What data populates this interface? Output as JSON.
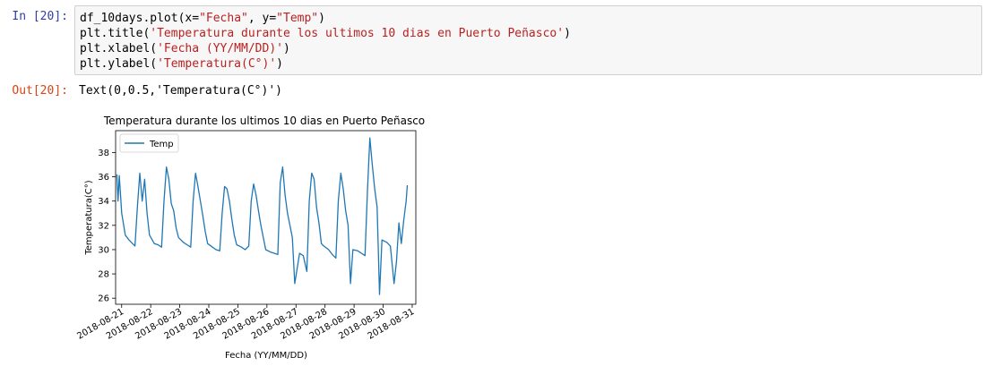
{
  "cell": {
    "in_prompt": "In [20]:",
    "out_prompt": "Out[20]:",
    "code_lines": [
      [
        "df_10days.plot(x=",
        "\"Fecha\"",
        ", y=",
        "\"Temp\"",
        ")"
      ],
      [
        "plt.title(",
        "'Temperatura durante los ultimos 10 dias en Puerto Peñasco'",
        ")"
      ],
      [
        "plt.xlabel(",
        "'Fecha (YY/MM/DD)'",
        ")"
      ],
      [
        "plt.ylabel(",
        "'Temperatura(C°)'",
        ")"
      ]
    ],
    "output_text": "Text(0,0.5,'Temperatura(C°)')"
  },
  "colors": {
    "line": "#1f77b4",
    "in_prompt": "#303f9f",
    "out_prompt": "#d84315",
    "string": "#ba2121"
  },
  "chart_data": {
    "type": "line",
    "title": "Temperatura durante los ultimos 10 dias en Puerto Peñasco",
    "xlabel": "Fecha (YY/MM/DD)",
    "ylabel": "Temperatura(C°)",
    "legend": {
      "entries": [
        "Temp"
      ],
      "placement": "upper-left"
    },
    "x_ticks": [
      "2018-08-21",
      "2018-08-22",
      "2018-08-23",
      "2018-08-24",
      "2018-08-25",
      "2018-08-26",
      "2018-08-27",
      "2018-08-28",
      "2018-08-29",
      "2018-08-30",
      "2018-08-31"
    ],
    "y_ticks": [
      26,
      28,
      30,
      32,
      34,
      36,
      38
    ],
    "ylim": [
      25.5,
      39.8
    ],
    "xlim": [
      "2018-08-20 19:00",
      "2018-08-31 03:00"
    ],
    "grid": false,
    "series": [
      {
        "name": "Temp",
        "x": [
          "2018-08-20 20:00",
          "2018-08-20 21:00",
          "2018-08-20 22:00",
          "2018-08-21 00:00",
          "2018-08-21 03:00",
          "2018-08-21 06:00",
          "2018-08-21 09:00",
          "2018-08-21 11:00",
          "2018-08-21 13:00",
          "2018-08-21 15:00",
          "2018-08-21 17:00",
          "2018-08-21 19:00",
          "2018-08-21 21:00",
          "2018-08-21 23:00",
          "2018-08-22 03:00",
          "2018-08-22 06:00",
          "2018-08-22 09:00",
          "2018-08-22 11:00",
          "2018-08-22 13:00",
          "2018-08-22 15:00",
          "2018-08-22 17:00",
          "2018-08-22 19:00",
          "2018-08-22 21:00",
          "2018-08-22 23:00",
          "2018-08-23 03:00",
          "2018-08-23 06:00",
          "2018-08-23 09:00",
          "2018-08-23 11:00",
          "2018-08-23 13:00",
          "2018-08-23 15:00",
          "2018-08-23 17:00",
          "2018-08-23 19:00",
          "2018-08-23 21:00",
          "2018-08-23 23:00",
          "2018-08-24 03:00",
          "2018-08-24 06:00",
          "2018-08-24 09:00",
          "2018-08-24 11:00",
          "2018-08-24 13:00",
          "2018-08-24 15:00",
          "2018-08-24 17:00",
          "2018-08-24 19:00",
          "2018-08-24 21:00",
          "2018-08-24 23:00",
          "2018-08-25 03:00",
          "2018-08-25 06:00",
          "2018-08-25 09:00",
          "2018-08-25 11:00",
          "2018-08-25 13:00",
          "2018-08-25 15:00",
          "2018-08-25 17:00",
          "2018-08-25 19:00",
          "2018-08-25 21:00",
          "2018-08-25 23:00",
          "2018-08-26 03:00",
          "2018-08-26 06:00",
          "2018-08-26 09:00",
          "2018-08-26 11:00",
          "2018-08-26 13:00",
          "2018-08-26 15:00",
          "2018-08-26 17:00",
          "2018-08-26 19:00",
          "2018-08-26 21:00",
          "2018-08-26 23:00",
          "2018-08-27 03:00",
          "2018-08-27 06:00",
          "2018-08-27 09:00",
          "2018-08-27 11:00",
          "2018-08-27 13:00",
          "2018-08-27 15:00",
          "2018-08-27 17:00",
          "2018-08-27 19:00",
          "2018-08-27 21:00",
          "2018-08-27 23:00",
          "2018-08-28 03:00",
          "2018-08-28 06:00",
          "2018-08-28 09:00",
          "2018-08-28 11:00",
          "2018-08-28 13:00",
          "2018-08-28 15:00",
          "2018-08-28 17:00",
          "2018-08-28 19:00",
          "2018-08-28 21:00",
          "2018-08-28 23:00",
          "2018-08-29 03:00",
          "2018-08-29 06:00",
          "2018-08-29 09:00",
          "2018-08-29 11:00",
          "2018-08-29 13:00",
          "2018-08-29 15:00",
          "2018-08-29 17:00",
          "2018-08-29 19:00",
          "2018-08-29 21:00",
          "2018-08-29 23:00",
          "2018-08-30 03:00",
          "2018-08-30 06:00",
          "2018-08-30 09:00",
          "2018-08-30 11:00",
          "2018-08-30 13:00",
          "2018-08-30 15:00",
          "2018-08-30 17:00",
          "2018-08-30 19:00",
          "2018-08-30 20:00"
        ],
        "y": [
          36.2,
          34.0,
          36.1,
          33.0,
          31.2,
          30.8,
          30.5,
          30.3,
          33.5,
          36.3,
          34.0,
          35.8,
          33.0,
          31.2,
          30.5,
          30.4,
          30.2,
          34.0,
          36.8,
          35.8,
          33.8,
          33.2,
          31.8,
          31.0,
          30.6,
          30.4,
          30.2,
          34.0,
          36.3,
          35.2,
          34.0,
          32.8,
          31.5,
          30.5,
          30.2,
          30.0,
          29.9,
          33.0,
          35.2,
          35.0,
          34.0,
          32.5,
          31.2,
          30.4,
          30.2,
          30.0,
          30.3,
          34.0,
          35.4,
          34.5,
          33.2,
          32.0,
          31.0,
          30.0,
          29.8,
          29.7,
          29.6,
          35.5,
          36.8,
          34.5,
          33.0,
          32.0,
          31.0,
          27.2,
          29.7,
          29.5,
          28.2,
          34.0,
          36.3,
          35.8,
          33.5,
          32.2,
          30.5,
          30.3,
          30.0,
          29.6,
          29.3,
          34.0,
          36.3,
          35.0,
          33.2,
          32.0,
          27.2,
          30.0,
          29.9,
          29.7,
          29.5,
          34.8,
          39.2,
          37.0,
          35.0,
          33.5,
          26.3,
          30.8,
          30.6,
          30.3,
          27.2,
          29.0,
          32.2,
          30.5,
          32.4,
          34.0,
          35.3
        ]
      }
    ]
  }
}
